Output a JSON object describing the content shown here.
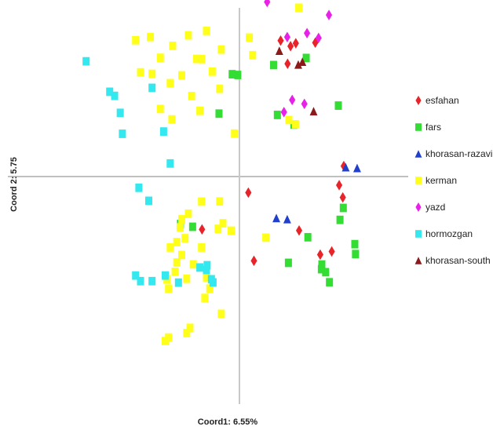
{
  "chart_data": {
    "type": "scatter",
    "title": "",
    "xlabel": "Coord1: 6.55%",
    "ylabel": "Coord 2: 5.75",
    "xlim": [
      -1.0,
      1.0
    ],
    "ylim": [
      -1.0,
      1.0
    ],
    "grid": false,
    "legend_position": "right",
    "series": [
      {
        "name": "esfahan",
        "marker": "diamond",
        "color": "#e8242a",
        "points": [
          [
            0.25,
            0.728
          ],
          [
            0.292,
            0.604
          ],
          [
            0.342,
            0.714
          ],
          [
            0.31,
            0.698
          ],
          [
            0.46,
            0.717
          ],
          [
            0.054,
            -0.086
          ],
          [
            0.362,
            -0.289
          ],
          [
            0.088,
            -0.451
          ],
          [
            0.49,
            -0.418
          ],
          [
            0.56,
            -0.401
          ],
          [
            0.605,
            -0.046
          ],
          [
            0.633,
            0.056
          ],
          [
            0.627,
            -0.112
          ],
          [
            -0.227,
            -0.283
          ]
        ]
      },
      {
        "name": "fars",
        "marker": "square",
        "color": "#33dd33",
        "points": [
          [
            -0.01,
            0.544
          ],
          [
            -0.044,
            0.548
          ],
          [
            0.207,
            0.597
          ],
          [
            0.23,
            0.33
          ],
          [
            0.33,
            0.278
          ],
          [
            0.405,
            0.635
          ],
          [
            0.415,
            -0.325
          ],
          [
            0.5,
            -0.471
          ],
          [
            0.523,
            -0.512
          ],
          [
            0.497,
            -0.496
          ],
          [
            0.546,
            -0.566
          ],
          [
            0.61,
            -0.232
          ],
          [
            0.63,
            -0.168
          ],
          [
            0.7,
            -0.362
          ],
          [
            0.704,
            -0.415
          ],
          [
            0.297,
            -0.462
          ],
          [
            0.6,
            0.38
          ],
          [
            -0.124,
            0.337
          ],
          [
            -0.284,
            -0.269
          ],
          [
            -0.358,
            -0.254
          ]
        ]
      },
      {
        "name": "khorasan-razavi",
        "marker": "triangle",
        "color": "#1f3fcc",
        "points": [
          [
            0.224,
            -0.222
          ],
          [
            0.29,
            -0.228
          ],
          [
            0.714,
            0.046
          ],
          [
            0.645,
            0.05
          ]
        ]
      },
      {
        "name": "kerman",
        "marker": "square",
        "color": "#ffff1a",
        "points": [
          [
            -0.54,
            0.747
          ],
          [
            -0.405,
            0.7
          ],
          [
            -0.31,
            0.756
          ],
          [
            -0.2,
            0.78
          ],
          [
            -0.48,
            0.636
          ],
          [
            -0.35,
            0.542
          ],
          [
            -0.23,
            0.629
          ],
          [
            -0.11,
            0.68
          ],
          [
            -0.63,
            0.73
          ],
          [
            -0.53,
            0.55
          ],
          [
            -0.42,
            0.5
          ],
          [
            -0.6,
            0.558
          ],
          [
            -0.48,
            0.362
          ],
          [
            -0.41,
            0.306
          ],
          [
            -0.24,
            0.352
          ],
          [
            -0.29,
            0.431
          ],
          [
            -0.165,
            0.562
          ],
          [
            -0.12,
            0.47
          ],
          [
            0.08,
            0.65
          ],
          [
            0.06,
            0.744
          ],
          [
            0.3,
            0.303
          ],
          [
            0.36,
            0.904
          ],
          [
            -0.12,
            -0.133
          ],
          [
            -0.23,
            -0.134
          ],
          [
            -0.31,
            -0.199
          ],
          [
            -0.35,
            -0.229
          ],
          [
            -0.36,
            -0.272
          ],
          [
            -0.38,
            -0.351
          ],
          [
            -0.42,
            -0.38
          ],
          [
            -0.38,
            -0.46
          ],
          [
            -0.28,
            -0.47
          ],
          [
            -0.32,
            -0.547
          ],
          [
            -0.2,
            -0.54
          ],
          [
            -0.18,
            -0.6
          ],
          [
            -0.21,
            -0.65
          ],
          [
            -0.05,
            -0.29
          ],
          [
            -0.1,
            -0.25
          ],
          [
            -0.13,
            -0.28
          ],
          [
            -0.43,
            -0.6
          ],
          [
            -0.44,
            -0.55
          ],
          [
            -0.11,
            -0.735
          ],
          [
            -0.32,
            -0.838
          ],
          [
            -0.3,
            -0.81
          ],
          [
            -0.45,
            -0.88
          ],
          [
            -0.43,
            -0.862
          ],
          [
            0.16,
            -0.327
          ],
          [
            -0.23,
            -0.38
          ],
          [
            -0.35,
            -0.42
          ],
          [
            -0.39,
            -0.51
          ],
          [
            -0.33,
            -0.33
          ],
          [
            -0.03,
            0.23
          ],
          [
            0.34,
            0.28
          ],
          [
            -0.26,
            0.63
          ]
        ]
      },
      {
        "name": "yazd",
        "marker": "diamond",
        "color": "#e820e8",
        "points": [
          [
            0.168,
            0.935
          ],
          [
            0.543,
            0.865
          ],
          [
            0.394,
            0.389
          ],
          [
            0.32,
            0.41
          ],
          [
            0.27,
            0.345
          ],
          [
            0.29,
            0.747
          ],
          [
            0.48,
            0.742
          ],
          [
            0.41,
            0.768
          ]
        ]
      },
      {
        "name": "hormozgan",
        "marker": "square",
        "color": "#33e8ee",
        "points": [
          [
            -0.93,
            0.617
          ],
          [
            -0.787,
            0.454
          ],
          [
            -0.757,
            0.432
          ],
          [
            -0.723,
            0.341
          ],
          [
            -0.71,
            0.229
          ],
          [
            -0.53,
            0.475
          ],
          [
            -0.46,
            0.241
          ],
          [
            -0.42,
            0.07
          ],
          [
            -0.61,
            -0.06
          ],
          [
            -0.55,
            -0.13
          ],
          [
            -0.45,
            -0.53
          ],
          [
            -0.53,
            -0.56
          ],
          [
            -0.6,
            -0.56
          ],
          [
            -0.63,
            -0.53
          ],
          [
            -0.37,
            -0.568
          ],
          [
            -0.24,
            -0.487
          ],
          [
            -0.17,
            -0.55
          ],
          [
            -0.16,
            -0.567
          ],
          [
            -0.196,
            -0.475
          ],
          [
            -0.2,
            -0.5
          ]
        ]
      },
      {
        "name": "khorasan-south",
        "marker": "triangle",
        "color": "#8b1a1a",
        "points": [
          [
            0.242,
            0.674
          ],
          [
            0.357,
            0.6
          ],
          [
            0.382,
            0.615
          ],
          [
            0.45,
            0.35
          ]
        ]
      }
    ]
  }
}
